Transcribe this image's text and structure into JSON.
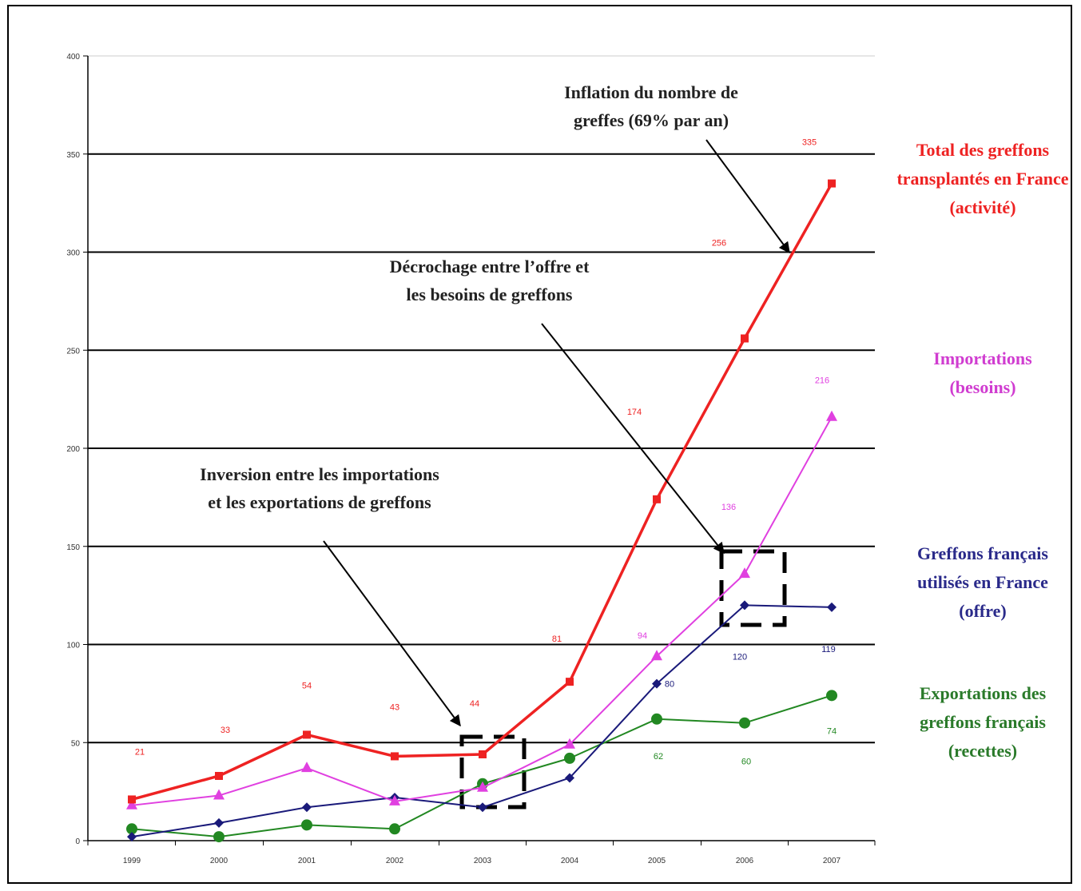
{
  "colors": {
    "total": "#ee2222",
    "imports": "#e040e0",
    "french": "#1a1a7a",
    "exports": "#228822",
    "grid": "#000000"
  },
  "chart_data": {
    "type": "line",
    "ylim": [
      0,
      400
    ],
    "y_ticks": [
      "0",
      "50",
      "100",
      "150",
      "200",
      "250",
      "300",
      "350",
      "400"
    ],
    "categories": [
      "1999",
      "2000",
      "2001",
      "2002",
      "2003",
      "2004",
      "2005",
      "2006",
      "2007"
    ],
    "grid": "horizontal",
    "series": [
      {
        "key": "total",
        "name_lines": [
          "Total des greffons",
          "transplantés en France",
          "(activité)"
        ],
        "values": [
          21,
          33,
          54,
          43,
          44,
          81,
          174,
          256,
          335
        ],
        "labels": [
          "21",
          "33",
          "54",
          "43",
          "44",
          "81",
          "174",
          "256",
          "335"
        ],
        "marker": "square"
      },
      {
        "key": "imports",
        "name_lines": [
          "Importations",
          "(besoins)"
        ],
        "values": [
          18,
          23,
          37,
          20,
          27,
          49,
          94,
          136,
          216
        ],
        "labels": [
          "",
          "",
          "",
          "",
          "",
          "",
          "94",
          "136",
          "216"
        ],
        "marker": "triangle"
      },
      {
        "key": "french",
        "name_lines": [
          "Greffons français",
          "utilisés en France",
          "(offre)"
        ],
        "values": [
          2,
          9,
          17,
          22,
          17,
          32,
          80,
          120,
          119
        ],
        "labels": [
          "",
          "",
          "",
          "",
          "",
          "",
          "80",
          "120",
          "119"
        ],
        "marker": "diamond"
      },
      {
        "key": "exports",
        "name_lines": [
          "Exportations des",
          "greffons français",
          "(recettes)"
        ],
        "values": [
          6,
          2,
          8,
          6,
          29,
          42,
          62,
          60,
          74
        ],
        "labels": [
          "",
          "",
          "",
          "",
          "",
          "",
          "62",
          "60",
          "74"
        ],
        "marker": "circle"
      }
    ],
    "annotations": [
      {
        "lines": [
          "Inflation du nombre de",
          "greffes (69% par an)"
        ]
      },
      {
        "lines": [
          "Décrochage entre l’offre et",
          "les besoins de greffons"
        ]
      },
      {
        "lines": [
          "Inversion entre les importations",
          "et les exportations de greffons"
        ]
      }
    ]
  }
}
